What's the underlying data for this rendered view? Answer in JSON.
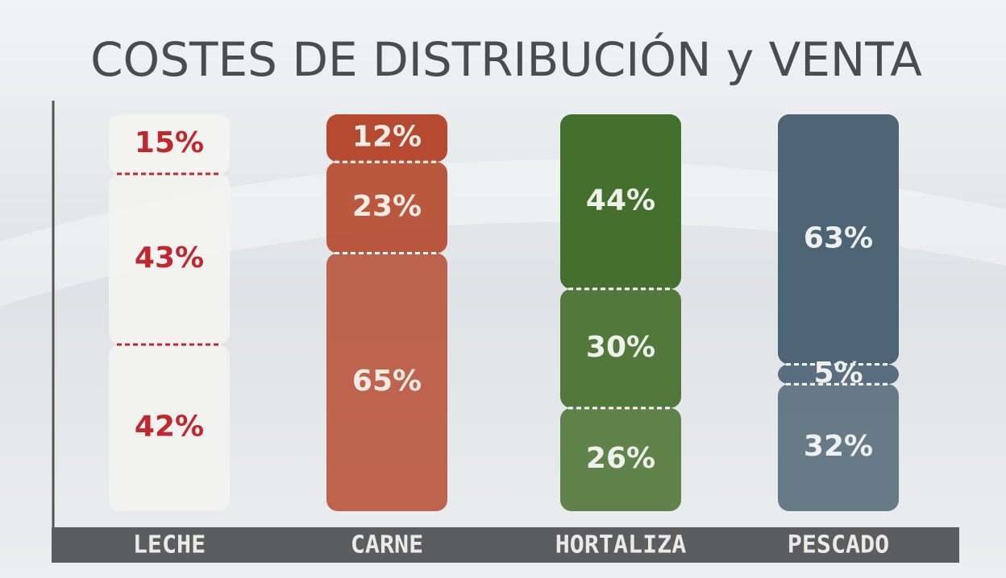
{
  "chart_data": {
    "type": "stacked_pictogram",
    "title": "COSTES DE DISTRIBUCIÓN y VENTA",
    "categories": [
      "LECHE",
      "CARNE",
      "HORTALIZA",
      "PESCADO"
    ],
    "colors": [
      "#f3f3f1",
      "#b54a30",
      "#456f2c",
      "#4d6474"
    ],
    "label_colors": [
      "#c0282d",
      "#f4ece4",
      "#eef2ea",
      "#eef0f0"
    ],
    "series": [
      {
        "values": [
          15,
          12,
          44,
          63
        ],
        "value_labels": [
          "15%",
          "12%",
          "44%",
          "63%"
        ]
      },
      {
        "values": [
          43,
          23,
          30,
          5
        ],
        "value_labels": [
          "43%",
          "23%",
          "30%",
          "5%"
        ]
      },
      {
        "values": [
          42,
          65,
          26,
          32
        ],
        "value_labels": [
          "42%",
          "65%",
          "26%",
          "32%"
        ]
      }
    ]
  }
}
